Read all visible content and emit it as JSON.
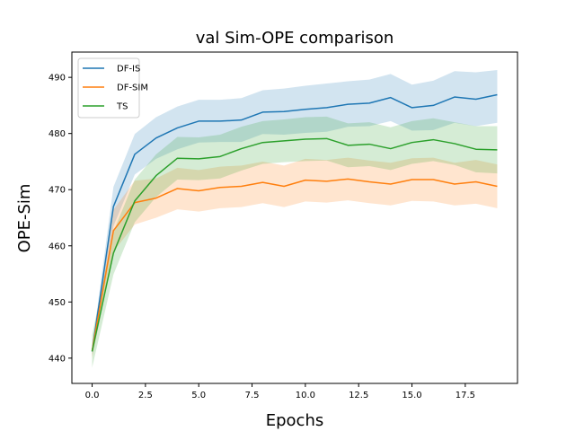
{
  "chart_data": {
    "type": "line",
    "title": "val Sim-OPE comparison",
    "xlabel": "Epochs",
    "ylabel": "OPE-Sim",
    "xlim": [
      -0.95,
      19.95
    ],
    "ylim": [
      435.5,
      494.5
    ],
    "xticks": [
      0.0,
      2.5,
      5.0,
      7.5,
      10.0,
      12.5,
      15.0,
      17.5
    ],
    "xtick_labels": [
      "0.0",
      "2.5",
      "5.0",
      "7.5",
      "10.0",
      "12.5",
      "15.0",
      "17.5"
    ],
    "yticks": [
      440,
      450,
      460,
      470,
      480,
      490
    ],
    "ytick_labels": [
      "440",
      "450",
      "460",
      "470",
      "480",
      "490"
    ],
    "grid": false,
    "legend_position": "top-left",
    "x": [
      0,
      1,
      2,
      3,
      4,
      5,
      6,
      7,
      8,
      9,
      10,
      11,
      12,
      13,
      14,
      15,
      16,
      17,
      18,
      19
    ],
    "series": [
      {
        "name": "DF-IS",
        "color": "#1f77b4",
        "values": [
          441.2,
          467.0,
          476.3,
          479.2,
          481.0,
          482.2,
          482.2,
          482.4,
          483.8,
          483.9,
          484.3,
          484.6,
          485.2,
          485.4,
          486.4,
          484.6,
          485.0,
          486.5,
          486.1,
          486.9
        ],
        "lower": [
          440.5,
          463.5,
          472.7,
          475.5,
          477.2,
          478.4,
          478.5,
          478.5,
          479.9,
          479.8,
          480.1,
          480.3,
          481.2,
          481.3,
          482.2,
          480.5,
          480.6,
          481.9,
          481.3,
          481.9
        ],
        "upper": [
          442.0,
          470.5,
          479.9,
          482.9,
          484.8,
          486.0,
          486.0,
          486.3,
          487.7,
          488.0,
          488.5,
          488.9,
          489.3,
          489.6,
          490.6,
          488.7,
          489.4,
          491.1,
          490.9,
          491.3
        ]
      },
      {
        "name": "DF-SIM",
        "color": "#ff7f0e",
        "values": [
          441.3,
          462.7,
          467.7,
          468.5,
          470.2,
          469.8,
          470.4,
          470.6,
          471.3,
          470.6,
          471.7,
          471.5,
          471.9,
          471.4,
          471.0,
          471.8,
          471.8,
          471.0,
          471.4,
          470.6
        ],
        "lower": [
          440.0,
          459.0,
          463.8,
          465.0,
          466.5,
          466.1,
          466.7,
          466.9,
          467.6,
          466.9,
          467.9,
          467.7,
          468.1,
          467.6,
          467.2,
          468.0,
          467.9,
          467.2,
          467.5,
          466.7
        ],
        "upper": [
          442.5,
          466.4,
          471.6,
          472.0,
          473.9,
          473.5,
          474.1,
          474.3,
          475.0,
          474.3,
          475.5,
          475.3,
          475.7,
          475.2,
          474.8,
          475.6,
          475.7,
          474.8,
          475.3,
          474.5
        ]
      },
      {
        "name": "TS",
        "color": "#2ca02c",
        "values": [
          441.2,
          458.7,
          468.0,
          472.5,
          475.6,
          475.5,
          475.9,
          477.3,
          478.4,
          478.7,
          479.0,
          479.1,
          477.9,
          478.1,
          477.3,
          478.4,
          478.9,
          478.2,
          477.2,
          477.1
        ],
        "lower": [
          438.3,
          454.9,
          464.2,
          468.7,
          471.8,
          471.7,
          472.0,
          473.4,
          474.6,
          474.9,
          475.1,
          475.2,
          474.0,
          474.2,
          473.5,
          474.6,
          475.1,
          474.4,
          473.1,
          472.9
        ],
        "upper": [
          444.1,
          462.5,
          471.8,
          476.3,
          479.4,
          479.3,
          479.8,
          481.2,
          482.2,
          482.5,
          482.9,
          483.0,
          481.8,
          482.0,
          481.1,
          482.2,
          482.7,
          482.0,
          481.3,
          481.3
        ]
      }
    ]
  }
}
